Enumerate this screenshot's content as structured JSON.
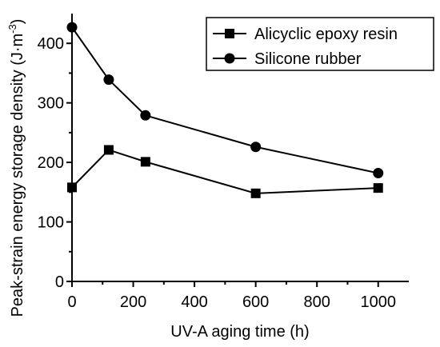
{
  "chart_data": {
    "type": "line",
    "title": "",
    "xlabel": "UV-A aging time (h)",
    "ylabel": "Peak-strain energy storage density (J·m",
    "ylabel_sup": "-3",
    "ylabel_close": ")",
    "xlim": [
      0,
      1100
    ],
    "ylim": [
      0,
      450
    ],
    "xticks": [
      0,
      200,
      400,
      600,
      800,
      1000
    ],
    "yticks": [
      0,
      100,
      200,
      300,
      400
    ],
    "grid": false,
    "legend_position": "top-right",
    "x": [
      0,
      120,
      240,
      600,
      1000
    ],
    "series": [
      {
        "name": "Alicyclic epoxy resin",
        "marker": "square",
        "color": "#000000",
        "values": [
          158,
          221,
          201,
          148,
          157
        ]
      },
      {
        "name": "Silicone rubber",
        "marker": "circle",
        "color": "#000000",
        "values": [
          427,
          339,
          279,
          226,
          182
        ]
      }
    ]
  }
}
